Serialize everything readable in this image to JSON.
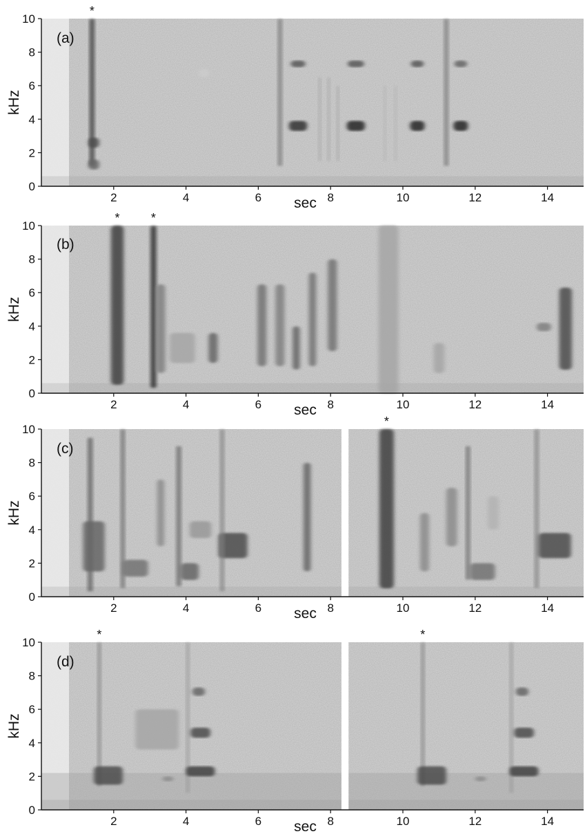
{
  "y_axis_label": "kHz",
  "x_axis_label": "sec",
  "panels": [
    {
      "label": "(a)",
      "yticks": [
        0,
        2,
        4,
        6,
        8,
        10
      ],
      "xticks": [
        2,
        4,
        6,
        8,
        10,
        12,
        14
      ],
      "xlim": [
        0,
        15
      ],
      "ylim": [
        0,
        10
      ],
      "segments": [
        [
          0,
          15
        ]
      ],
      "star_times": [
        1.4
      ],
      "events": [
        {
          "t": 1.4,
          "f0": 1.2,
          "f1": 10,
          "w": 0.12,
          "k": 0.8
        },
        {
          "t": 1.45,
          "f0": 2.3,
          "f1": 2.9,
          "w": 0.3,
          "k": 0.7
        },
        {
          "t": 1.45,
          "f0": 1.0,
          "f1": 1.6,
          "w": 0.3,
          "k": 0.6
        },
        {
          "t": 6.6,
          "f0": 1.2,
          "f1": 10,
          "w": 0.1,
          "k": 0.55
        },
        {
          "t": 7.1,
          "f0": 3.3,
          "f1": 3.9,
          "w": 0.5,
          "k": 0.8
        },
        {
          "t": 7.1,
          "f0": 7.1,
          "f1": 7.5,
          "w": 0.4,
          "k": 0.65
        },
        {
          "t": 7.7,
          "f0": 1.5,
          "f1": 6.5,
          "w": 0.06,
          "k": 0.35
        },
        {
          "t": 7.95,
          "f0": 1.5,
          "f1": 6.5,
          "w": 0.06,
          "k": 0.35
        },
        {
          "t": 8.2,
          "f0": 1.5,
          "f1": 6.0,
          "w": 0.06,
          "k": 0.35
        },
        {
          "t": 8.7,
          "f0": 3.3,
          "f1": 3.9,
          "w": 0.5,
          "k": 0.85
        },
        {
          "t": 8.7,
          "f0": 7.1,
          "f1": 7.5,
          "w": 0.45,
          "k": 0.65
        },
        {
          "t": 9.5,
          "f0": 1.5,
          "f1": 6.0,
          "w": 0.06,
          "k": 0.3
        },
        {
          "t": 9.8,
          "f0": 1.5,
          "f1": 6.0,
          "w": 0.06,
          "k": 0.3
        },
        {
          "t": 10.4,
          "f0": 3.3,
          "f1": 3.9,
          "w": 0.4,
          "k": 0.85
        },
        {
          "t": 10.4,
          "f0": 7.1,
          "f1": 7.5,
          "w": 0.35,
          "k": 0.65
        },
        {
          "t": 11.2,
          "f0": 1.2,
          "f1": 10,
          "w": 0.1,
          "k": 0.55
        },
        {
          "t": 11.6,
          "f0": 3.3,
          "f1": 3.9,
          "w": 0.4,
          "k": 0.85
        },
        {
          "t": 11.6,
          "f0": 7.1,
          "f1": 7.5,
          "w": 0.35,
          "k": 0.6
        },
        {
          "t": 4.5,
          "f0": 6.5,
          "f1": 7.0,
          "w": 0.3,
          "k": 0.2
        }
      ]
    },
    {
      "label": "(b)",
      "yticks": [
        0,
        2,
        4,
        6,
        8,
        10
      ],
      "xticks": [
        2,
        4,
        6,
        8,
        10,
        12,
        14
      ],
      "xlim": [
        0,
        15
      ],
      "ylim": [
        0,
        10
      ],
      "segments": [
        [
          0,
          15
        ]
      ],
      "star_times": [
        2.1,
        3.1
      ],
      "events": [
        {
          "t": 2.1,
          "f0": 0.5,
          "f1": 10,
          "w": 0.35,
          "k": 0.75
        },
        {
          "t": 3.1,
          "f0": 0.3,
          "f1": 10,
          "w": 0.15,
          "k": 0.85
        },
        {
          "t": 3.3,
          "f0": 1.2,
          "f1": 6.5,
          "w": 0.25,
          "k": 0.5
        },
        {
          "t": 3.9,
          "f0": 1.8,
          "f1": 3.6,
          "w": 0.7,
          "k": 0.35
        },
        {
          "t": 4.75,
          "f0": 1.8,
          "f1": 3.6,
          "w": 0.25,
          "k": 0.6
        },
        {
          "t": 6.1,
          "f0": 1.6,
          "f1": 6.5,
          "w": 0.25,
          "k": 0.55
        },
        {
          "t": 6.6,
          "f0": 1.6,
          "f1": 6.5,
          "w": 0.25,
          "k": 0.5
        },
        {
          "t": 7.05,
          "f0": 1.4,
          "f1": 4.0,
          "w": 0.2,
          "k": 0.6
        },
        {
          "t": 7.5,
          "f0": 1.6,
          "f1": 7.2,
          "w": 0.2,
          "k": 0.55
        },
        {
          "t": 8.05,
          "f0": 2.5,
          "f1": 8.0,
          "w": 0.25,
          "k": 0.55
        },
        {
          "t": 9.6,
          "f0": 0.0,
          "f1": 10,
          "w": 0.55,
          "k": 0.35
        },
        {
          "t": 11.0,
          "f0": 1.2,
          "f1": 3.0,
          "w": 0.3,
          "k": 0.35
        },
        {
          "t": 14.5,
          "f0": 1.4,
          "f1": 6.3,
          "w": 0.35,
          "k": 0.7
        },
        {
          "t": 13.9,
          "f0": 3.7,
          "f1": 4.2,
          "w": 0.4,
          "k": 0.5
        }
      ]
    },
    {
      "label": "(c)",
      "yticks": [
        0,
        2,
        4,
        6,
        8,
        10
      ],
      "xticks": [
        2,
        4,
        6,
        8,
        10,
        12,
        14
      ],
      "xlim": [
        0,
        15
      ],
      "ylim": [
        0,
        10
      ],
      "segments": [
        [
          0,
          8.3
        ],
        [
          8.5,
          15
        ]
      ],
      "star_times": [
        9.55
      ],
      "events": [
        {
          "t": 1.35,
          "f0": 0.3,
          "f1": 9.5,
          "w": 0.12,
          "k": 0.65
        },
        {
          "t": 1.45,
          "f0": 1.5,
          "f1": 4.5,
          "w": 0.6,
          "k": 0.6
        },
        {
          "t": 2.25,
          "f0": 0.5,
          "f1": 10,
          "w": 0.1,
          "k": 0.6
        },
        {
          "t": 2.6,
          "f0": 1.2,
          "f1": 2.2,
          "w": 0.7,
          "k": 0.55
        },
        {
          "t": 3.3,
          "f0": 3.0,
          "f1": 7.0,
          "w": 0.2,
          "k": 0.45
        },
        {
          "t": 3.8,
          "f0": 0.6,
          "f1": 9.0,
          "w": 0.12,
          "k": 0.6
        },
        {
          "t": 4.1,
          "f0": 1.0,
          "f1": 2.0,
          "w": 0.5,
          "k": 0.6
        },
        {
          "t": 4.4,
          "f0": 3.5,
          "f1": 4.5,
          "w": 0.6,
          "k": 0.4
        },
        {
          "t": 5.3,
          "f0": 2.3,
          "f1": 3.8,
          "w": 0.8,
          "k": 0.7
        },
        {
          "t": 5.0,
          "f0": 0.3,
          "f1": 10,
          "w": 0.1,
          "k": 0.5
        },
        {
          "t": 7.35,
          "f0": 1.5,
          "f1": 8.0,
          "w": 0.2,
          "k": 0.6
        },
        {
          "t": 9.55,
          "f0": 0.5,
          "f1": 10,
          "w": 0.4,
          "k": 0.75
        },
        {
          "t": 10.6,
          "f0": 1.5,
          "f1": 5.0,
          "w": 0.25,
          "k": 0.45
        },
        {
          "t": 11.35,
          "f0": 3.0,
          "f1": 6.5,
          "w": 0.3,
          "k": 0.45
        },
        {
          "t": 11.8,
          "f0": 1.0,
          "f1": 9.0,
          "w": 0.1,
          "k": 0.6
        },
        {
          "t": 12.2,
          "f0": 1.0,
          "f1": 2.0,
          "w": 0.7,
          "k": 0.55
        },
        {
          "t": 13.7,
          "f0": 0.5,
          "f1": 10,
          "w": 0.1,
          "k": 0.5
        },
        {
          "t": 14.2,
          "f0": 2.3,
          "f1": 3.8,
          "w": 0.9,
          "k": 0.7
        },
        {
          "t": 12.5,
          "f0": 4.0,
          "f1": 6.0,
          "w": 0.3,
          "k": 0.3
        }
      ]
    },
    {
      "label": "(d)",
      "yticks": [
        0,
        2,
        4,
        6,
        8,
        10
      ],
      "xticks": [
        2,
        4,
        6,
        8,
        10,
        12,
        14
      ],
      "xlim": [
        0,
        15
      ],
      "ylim": [
        0,
        10
      ],
      "segments": [
        [
          0,
          8.3
        ],
        [
          8.5,
          15
        ]
      ],
      "star_times": [
        1.6,
        10.55
      ],
      "events": [
        {
          "t": 1.6,
          "f0": 1.4,
          "f1": 10,
          "w": 0.08,
          "k": 0.5
        },
        {
          "t": 1.85,
          "f0": 1.5,
          "f1": 2.6,
          "w": 0.8,
          "k": 0.7
        },
        {
          "t": 3.2,
          "f0": 3.6,
          "f1": 6.0,
          "w": 1.2,
          "k": 0.35
        },
        {
          "t": 3.5,
          "f0": 1.7,
          "f1": 2.0,
          "w": 0.3,
          "k": 0.45
        },
        {
          "t": 4.05,
          "f0": 1.0,
          "f1": 10,
          "w": 0.08,
          "k": 0.4
        },
        {
          "t": 4.4,
          "f0": 2.0,
          "f1": 2.6,
          "w": 0.8,
          "k": 0.75
        },
        {
          "t": 4.4,
          "f0": 4.3,
          "f1": 4.9,
          "w": 0.55,
          "k": 0.7
        },
        {
          "t": 4.35,
          "f0": 6.8,
          "f1": 7.3,
          "w": 0.35,
          "k": 0.6
        },
        {
          "t": 10.55,
          "f0": 1.4,
          "f1": 10,
          "w": 0.08,
          "k": 0.5
        },
        {
          "t": 10.8,
          "f0": 1.5,
          "f1": 2.6,
          "w": 0.8,
          "k": 0.7
        },
        {
          "t": 12.15,
          "f0": 1.7,
          "f1": 2.0,
          "w": 0.3,
          "k": 0.45
        },
        {
          "t": 13.0,
          "f0": 1.0,
          "f1": 10,
          "w": 0.08,
          "k": 0.4
        },
        {
          "t": 13.35,
          "f0": 2.0,
          "f1": 2.6,
          "w": 0.8,
          "k": 0.75
        },
        {
          "t": 13.35,
          "f0": 4.3,
          "f1": 4.9,
          "w": 0.55,
          "k": 0.7
        },
        {
          "t": 13.3,
          "f0": 6.8,
          "f1": 7.3,
          "w": 0.35,
          "k": 0.6
        }
      ]
    }
  ]
}
